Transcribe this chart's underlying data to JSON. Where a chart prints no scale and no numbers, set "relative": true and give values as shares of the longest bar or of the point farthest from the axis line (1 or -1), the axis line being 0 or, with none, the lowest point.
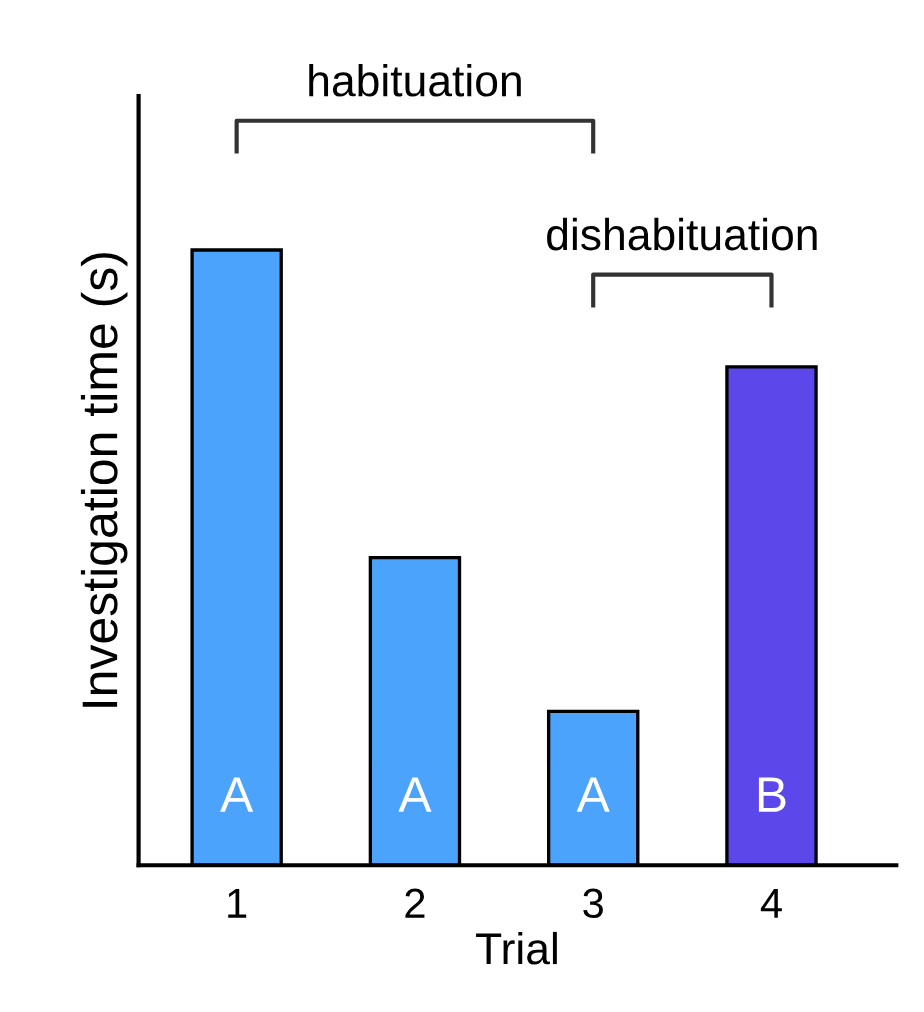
{
  "chart_data": {
    "type": "bar",
    "relative": true,
    "xlabel": "Trial",
    "ylabel": "Investigation time (s)",
    "categories": [
      "1",
      "2",
      "3",
      "4"
    ],
    "values": [
      1.0,
      0.5,
      0.25,
      0.81
    ],
    "colors": [
      "#4ba3fb",
      "#4ba3fb",
      "#4ba3fb",
      "#5c48ea"
    ],
    "annotations": [
      "A",
      "A",
      "A",
      "B",
      "habituation",
      "dishabituation"
    ],
    "grid": false,
    "legend": false
  }
}
